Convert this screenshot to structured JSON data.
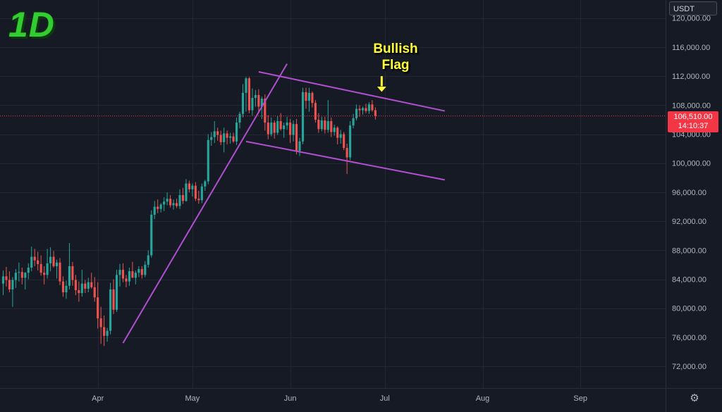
{
  "badge": "1D",
  "currency_label": "USDT",
  "annotation": {
    "line1": "Bullish",
    "line2": "Flag"
  },
  "last_price": {
    "value": "106,510.00",
    "countdown": "14:10:37"
  },
  "colors": {
    "background": "#161a25",
    "up": "#26a69a",
    "down": "#ef5350",
    "trendline": "#b04fd0",
    "grid": "#232734",
    "axis_text": "#b2b5be",
    "last_price_tag": "#f23645",
    "annotation": "#ffff33"
  },
  "icons": {
    "settings": "gear-icon",
    "arrow": "arrow-down-icon"
  },
  "chart_data": {
    "type": "candlestick",
    "title": "",
    "ylim": [
      69000,
      122500
    ],
    "y_ticks": [
      72000,
      76000,
      80000,
      84000,
      88000,
      92000,
      96000,
      100000,
      104000,
      108000,
      112000,
      116000,
      120000
    ],
    "y_tick_labels": [
      "72,000.00",
      "76,000.00",
      "80,000.00",
      "84,000.00",
      "88,000.00",
      "92,000.00",
      "96,000.00",
      "100,000.00",
      "104,000.00",
      "108,000.00",
      "112,000.00",
      "116,000.00",
      "120,000.00"
    ],
    "x_range": [
      "2025-03-01",
      "2025-09-28"
    ],
    "x_ticks": [
      {
        "date": "2025-04-01",
        "label": "Apr"
      },
      {
        "date": "2025-05-01",
        "label": "May"
      },
      {
        "date": "2025-06-01",
        "label": "Jun"
      },
      {
        "date": "2025-07-01",
        "label": "Jul"
      },
      {
        "date": "2025-08-01",
        "label": "Aug"
      },
      {
        "date": "2025-09-01",
        "label": "Sep"
      }
    ],
    "candles_start": "2025-03-02",
    "candles": [
      [
        83400,
        85200,
        81800,
        84400
      ],
      [
        84400,
        85700,
        83000,
        83900
      ],
      [
        83900,
        85100,
        82200,
        82600
      ],
      [
        82600,
        84300,
        80200,
        83900
      ],
      [
        83900,
        85400,
        82800,
        84900
      ],
      [
        84900,
        86300,
        83700,
        85000
      ],
      [
        85000,
        85600,
        83300,
        84200
      ],
      [
        84200,
        85000,
        82600,
        84900
      ],
      [
        84900,
        86200,
        84000,
        85600
      ],
      [
        85600,
        88500,
        85100,
        87100
      ],
      [
        87100,
        88200,
        85800,
        86600
      ],
      [
        86600,
        87800,
        85200,
        86100
      ],
      [
        86100,
        87300,
        84500,
        84900
      ],
      [
        84900,
        85800,
        83300,
        84600
      ],
      [
        84600,
        88200,
        84100,
        86200
      ],
      [
        86200,
        88400,
        85100,
        87100
      ],
      [
        87100,
        87900,
        85600,
        85800
      ],
      [
        85800,
        86700,
        84100,
        86300
      ],
      [
        86300,
        86900,
        83200,
        83700
      ],
      [
        83700,
        84400,
        81600,
        82200
      ],
      [
        82200,
        83800,
        81300,
        83100
      ],
      [
        83100,
        89000,
        82600,
        85800
      ],
      [
        85800,
        86400,
        83100,
        83900
      ],
      [
        83900,
        84600,
        81800,
        82500
      ],
      [
        82500,
        83700,
        80900,
        82100
      ],
      [
        82100,
        85300,
        81600,
        83400
      ],
      [
        83400,
        83900,
        82100,
        82700
      ],
      [
        82700,
        84200,
        82200,
        83600
      ],
      [
        83600,
        84900,
        82700,
        82900
      ],
      [
        82900,
        84300,
        80900,
        81500
      ],
      [
        81500,
        83600,
        77200,
        78600
      ],
      [
        78600,
        80200,
        75100,
        77400
      ],
      [
        77400,
        79000,
        74800,
        76200
      ],
      [
        76200,
        77300,
        75400,
        76900
      ],
      [
        76900,
        83500,
        76400,
        82600
      ],
      [
        82600,
        84000,
        79200,
        79800
      ],
      [
        79800,
        85300,
        79500,
        84600
      ],
      [
        84600,
        86100,
        83000,
        85300
      ],
      [
        85300,
        86200,
        83600,
        84100
      ],
      [
        84100,
        84600,
        82900,
        83700
      ],
      [
        83700,
        85600,
        83100,
        85100
      ],
      [
        85100,
        86400,
        84500,
        84200
      ],
      [
        84200,
        85200,
        83300,
        84900
      ],
      [
        84900,
        85800,
        84300,
        85400
      ],
      [
        85400,
        85800,
        84100,
        84600
      ],
      [
        84600,
        86500,
        84300,
        86000
      ],
      [
        86000,
        88000,
        85600,
        87300
      ],
      [
        87300,
        93500,
        87000,
        92900
      ],
      [
        92900,
        94800,
        92300,
        94000
      ],
      [
        94000,
        95000,
        93100,
        93700
      ],
      [
        93700,
        94500,
        93200,
        94300
      ],
      [
        94300,
        95300,
        93400,
        94700
      ],
      [
        94700,
        96000,
        94200,
        95100
      ],
      [
        95100,
        95600,
        93900,
        94200
      ],
      [
        94200,
        95000,
        93600,
        94500
      ],
      [
        94500,
        95100,
        93800,
        94100
      ],
      [
        94100,
        96400,
        93700,
        95600
      ],
      [
        95600,
        96600,
        94400,
        94800
      ],
      [
        94800,
        97800,
        94700,
        97200
      ],
      [
        97200,
        97600,
        96000,
        96400
      ],
      [
        96400,
        97200,
        95400,
        96900
      ],
      [
        96900,
        97400,
        94800,
        95100
      ],
      [
        95100,
        96200,
        94400,
        94900
      ],
      [
        94900,
        97200,
        94500,
        96800
      ],
      [
        96800,
        97700,
        96200,
        97500
      ],
      [
        97500,
        104000,
        97100,
        103200
      ],
      [
        103200,
        104300,
        102400,
        103600
      ],
      [
        103600,
        105800,
        102800,
        104400
      ],
      [
        104400,
        104900,
        103100,
        103900
      ],
      [
        103900,
        104500,
        102500,
        102900
      ],
      [
        102900,
        104900,
        101500,
        104100
      ],
      [
        104100,
        104500,
        102600,
        103500
      ],
      [
        103500,
        104200,
        102700,
        103700
      ],
      [
        103700,
        104200,
        102800,
        103000
      ],
      [
        103000,
        106300,
        102500,
        105600
      ],
      [
        105600,
        107100,
        104800,
        106800
      ],
      [
        106800,
        110900,
        106300,
        109700
      ],
      [
        109700,
        111900,
        107100,
        111700
      ],
      [
        111700,
        111900,
        106900,
        107300
      ],
      [
        107300,
        110300,
        106600,
        109000
      ],
      [
        109000,
        110100,
        107800,
        109400
      ],
      [
        109400,
        110200,
        107100,
        107800
      ],
      [
        107800,
        109200,
        106100,
        108900
      ],
      [
        108900,
        109500,
        104500,
        105600
      ],
      [
        105600,
        106600,
        103300,
        104000
      ],
      [
        104000,
        106300,
        103700,
        105600
      ],
      [
        105600,
        105900,
        103400,
        104200
      ],
      [
        104200,
        106500,
        103900,
        105800
      ],
      [
        105800,
        106900,
        104500,
        104700
      ],
      [
        104700,
        105600,
        103500,
        105200
      ],
      [
        105200,
        106400,
        104600,
        105600
      ],
      [
        105600,
        106100,
        102800,
        103900
      ],
      [
        103900,
        105900,
        103000,
        105400
      ],
      [
        105400,
        106100,
        101200,
        101700
      ],
      [
        101700,
        103500,
        101000,
        103000
      ],
      [
        103000,
        110400,
        102600,
        109800
      ],
      [
        109800,
        110400,
        107500,
        108600
      ],
      [
        108600,
        110400,
        107100,
        109700
      ],
      [
        109700,
        109900,
        107700,
        108300
      ],
      [
        108300,
        108700,
        105600,
        106000
      ],
      [
        106000,
        106900,
        104200,
        104700
      ],
      [
        104700,
        106400,
        104400,
        105900
      ],
      [
        105900,
        106400,
        104100,
        104600
      ],
      [
        104600,
        108700,
        104200,
        105800
      ],
      [
        105800,
        106300,
        103600,
        104300
      ],
      [
        104300,
        105300,
        103800,
        104900
      ],
      [
        104900,
        105100,
        102600,
        103500
      ],
      [
        103500,
        104600,
        102700,
        104000
      ],
      [
        104000,
        104300,
        101800,
        102100
      ],
      [
        102100,
        102700,
        98500,
        100800
      ],
      [
        100800,
        105800,
        100400,
        105200
      ],
      [
        105200,
        106800,
        104800,
        106200
      ],
      [
        106200,
        108100,
        105900,
        107500
      ],
      [
        107500,
        108000,
        106400,
        107300
      ],
      [
        107300,
        107800,
        106700,
        107600
      ],
      [
        107600,
        108200,
        106900,
        107200
      ],
      [
        107200,
        108400,
        106800,
        108100
      ],
      [
        108100,
        108700,
        107100,
        107300
      ],
      [
        107300,
        107700,
        106000,
        106510
      ]
    ],
    "trendlines": [
      {
        "from": {
          "date": "2025-04-09",
          "price": 75200
        },
        "to": {
          "date": "2025-05-31",
          "price": 113700
        }
      },
      {
        "from": {
          "date": "2025-05-22",
          "price": 112600
        },
        "to": {
          "date": "2025-07-20",
          "price": 107200
        }
      },
      {
        "from": {
          "date": "2025-05-18",
          "price": 103000
        },
        "to": {
          "date": "2025-07-20",
          "price": 97700
        }
      }
    ],
    "annotation_arrow": {
      "date": "2025-06-30",
      "price_top": 112000,
      "price_tip": 109800
    }
  }
}
